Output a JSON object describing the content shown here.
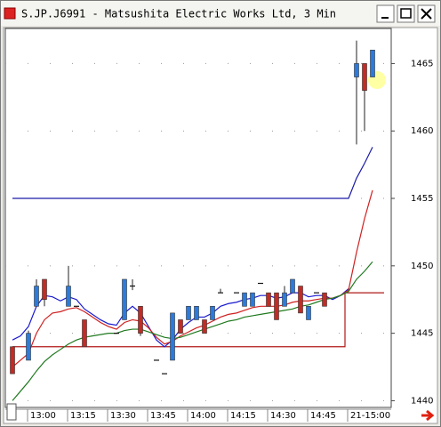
{
  "window": {
    "title": "S.JP.J6991 - Matsushita Electric Works Ltd, 3 Min"
  },
  "chart_data": {
    "type": "candlestick",
    "categories": [
      null,
      null,
      null,
      "13:00",
      null,
      null,
      null,
      null,
      "13:15",
      null,
      null,
      null,
      null,
      "13:30",
      null,
      null,
      null,
      null,
      "13:45",
      null,
      null,
      null,
      null,
      "14:00",
      null,
      null,
      null,
      null,
      "14:15",
      null,
      null,
      null,
      null,
      "14:30",
      null,
      null,
      null,
      null,
      "14:45",
      null,
      null,
      null,
      null,
      "21-15:00",
      null,
      null
    ],
    "open": [
      1444,
      null,
      1443,
      1447,
      1449,
      null,
      null,
      1447,
      1447,
      1446,
      null,
      null,
      null,
      1445,
      1446,
      1448.5,
      1447,
      null,
      1443,
      1442,
      1443,
      1446,
      1446,
      1446,
      1446,
      1446,
      1448,
      null,
      1448,
      1447,
      1447,
      1448.7,
      1448,
      1448,
      1447,
      1448,
      1448.5,
      1446,
      1448,
      1448,
      null,
      null,
      null,
      1464,
      1465,
      1464
    ],
    "high": [
      1444,
      null,
      1445.2,
      1449,
      1449,
      null,
      null,
      1450,
      1447,
      1446,
      null,
      null,
      null,
      1445,
      1449,
      1449,
      1447,
      null,
      1443,
      1442,
      1446.5,
      1446,
      1447,
      1447,
      1446,
      1447,
      1448.3,
      null,
      1448,
      1448,
      1448,
      1448.7,
      1448,
      1448,
      1448.5,
      1449,
      1448.5,
      1447,
      1448,
      1448,
      null,
      null,
      null,
      1466.7,
      1465,
      1466
    ],
    "low": [
      1442,
      null,
      1443,
      1447,
      1447,
      null,
      null,
      1447,
      1447,
      1444,
      null,
      null,
      null,
      1445,
      1446,
      1448.2,
      1444.8,
      null,
      1443,
      1442,
      1443,
      1445,
      1446,
      1446,
      1445,
      1446,
      1448,
      null,
      1448,
      1447,
      1447,
      1448.7,
      1447,
      1446,
      1447,
      1448,
      1446.5,
      1446,
      1448,
      1447,
      null,
      null,
      null,
      1459,
      1460,
      1464
    ],
    "close": [
      1442,
      null,
      1445,
      1448.5,
      1447.5,
      null,
      null,
      1448.5,
      1447,
      1444,
      null,
      null,
      null,
      1445,
      1449,
      1448.5,
      1445,
      null,
      1443,
      1442,
      1446.5,
      1445,
      1447,
      1447,
      1445,
      1447,
      1448,
      null,
      1448,
      1448,
      1448,
      1448.7,
      1447,
      1446,
      1448,
      1449,
      1446.5,
      1447,
      1448,
      1447,
      null,
      null,
      null,
      1465,
      1463,
      1466
    ],
    "up_color": "#2a7be0",
    "down_color": "#c62a22",
    "overlays": [
      {
        "color": "#1a1aa8",
        "step": false,
        "values": [
          1455,
          1455,
          1455,
          1455,
          1455,
          1455,
          1455,
          1455,
          1455,
          1455,
          1455,
          1455,
          1455,
          1455,
          1455,
          1455,
          1455,
          1455,
          1455,
          1455,
          1455,
          1455,
          1455,
          1455,
          1455,
          1455,
          1455,
          1455,
          1455,
          1455,
          1455,
          1455,
          1455,
          1455,
          1455,
          1455,
          1455,
          1455,
          1455,
          1455,
          1455,
          1455,
          1455,
          1456.5,
          1457.6,
          1458.8
        ]
      },
      {
        "color": "#b01818",
        "step": true,
        "values": [
          1444,
          1444,
          1444,
          1444,
          1444,
          1444,
          1444,
          1444,
          1444,
          1444,
          1444,
          1444,
          1444,
          1444,
          1444,
          1444,
          1444,
          1444,
          1444,
          1444,
          1444,
          1444,
          1444,
          1444,
          1444,
          1444,
          1444,
          1444,
          1444,
          1444,
          1444,
          1444,
          1444,
          1444,
          1444,
          1444,
          1444,
          1444,
          1444,
          1444,
          1444,
          1444,
          1448,
          1448,
          1448,
          1448
        ]
      },
      {
        "color": "#1a1ad0",
        "step": false,
        "values": [
          1444.5,
          1444.8,
          1445.5,
          1447,
          1447.8,
          1447.7,
          1447.4,
          1447.7,
          1447.5,
          1446.8,
          1446.4,
          1446,
          1445.7,
          1445.6,
          1446.5,
          1447,
          1446.5,
          1445.5,
          1444.5,
          1444,
          1444.5,
          1445.3,
          1445.8,
          1446.2,
          1446.2,
          1446.5,
          1447,
          1447.2,
          1447.3,
          1447.5,
          1447.6,
          1447.8,
          1447.8,
          1447.6,
          1447.7,
          1448,
          1448,
          1447.7,
          1447.8,
          1447.8,
          1447.5,
          1447.8,
          1448.3,
          null,
          null,
          null
        ]
      },
      {
        "color": "#d02020",
        "step": false,
        "values": [
          1442.5,
          1443,
          1443.5,
          1445,
          1446,
          1446.5,
          1446.6,
          1446.8,
          1446.9,
          1446.6,
          1446.2,
          1445.8,
          1445.5,
          1445.3,
          1445.8,
          1446,
          1445.9,
          1445.4,
          1444.7,
          1444.2,
          1444.4,
          1444.8,
          1445.1,
          1445.4,
          1445.6,
          1445.9,
          1446.2,
          1446.4,
          1446.5,
          1446.7,
          1446.9,
          1447,
          1447,
          1447,
          1447.1,
          1447.3,
          1447.4,
          1447.4,
          1447.5,
          1447.6,
          1447.6,
          1447.8,
          1448.2,
          1451,
          1453.5,
          1455.6
        ]
      },
      {
        "color": "#1f7a1f",
        "step": false,
        "values": [
          1440,
          1440.7,
          1441.4,
          1442.2,
          1442.9,
          1443.4,
          1443.8,
          1444.2,
          1444.5,
          1444.7,
          1444.8,
          1444.9,
          1445,
          1445,
          1445.2,
          1445.3,
          1445.3,
          1445.1,
          1444.9,
          1444.7,
          1444.6,
          1444.7,
          1444.9,
          1445.1,
          1445.3,
          1445.5,
          1445.7,
          1445.9,
          1446,
          1446.2,
          1446.3,
          1446.4,
          1446.5,
          1446.6,
          1446.7,
          1446.8,
          1447,
          1447.1,
          1447.3,
          1447.5,
          1447.6,
          1447.8,
          1448.1,
          1449,
          1449.6,
          1450.3
        ]
      }
    ],
    "ylim": [
      1439.5,
      1467.6
    ],
    "yticks": [
      1440,
      1445,
      1450,
      1455,
      1460,
      1465
    ],
    "grid": true
  }
}
